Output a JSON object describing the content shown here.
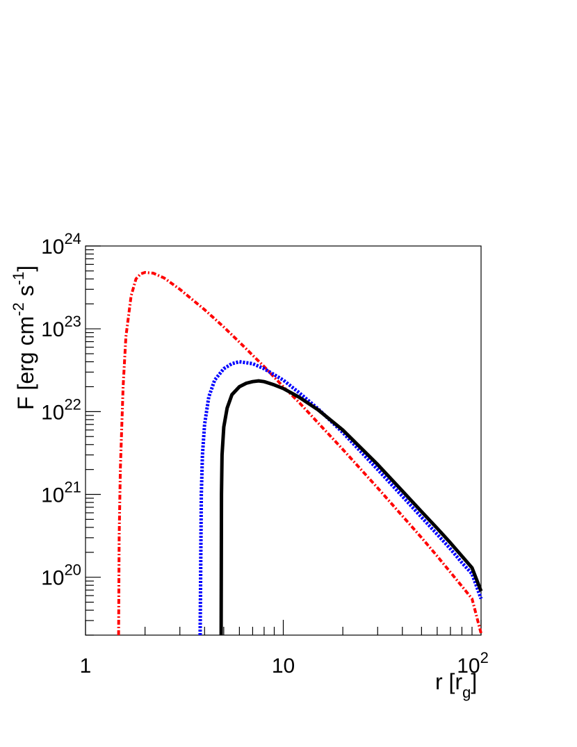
{
  "chart_data": {
    "type": "line",
    "xscale": "log",
    "yscale": "log",
    "xlim": [
      1,
      100
    ],
    "ylim": [
      2e+19,
      1e+24
    ],
    "grid": false,
    "xlabel": "r [r_g]",
    "ylabel": "F [erg cm^-2 s^-1]",
    "x_ticks": [
      {
        "value": 1,
        "label": "1"
      },
      {
        "value": 10,
        "label": "10"
      },
      {
        "value": 100,
        "label": "10",
        "sup": "2"
      }
    ],
    "y_ticks": [
      {
        "value": 1e+20,
        "label": "10",
        "sup": "20"
      },
      {
        "value": 1e+21,
        "label": "10",
        "sup": "21"
      },
      {
        "value": 1e+22,
        "label": "10",
        "sup": "22"
      },
      {
        "value": 1e+23,
        "label": "10",
        "sup": "23"
      },
      {
        "value": 1e+24,
        "label": "10",
        "sup": "24"
      }
    ],
    "series": [
      {
        "color": "#ff0000",
        "style": "dash-dot",
        "points": [
          [
            1.47,
            2e+19
          ],
          [
            1.48,
            3e+20
          ],
          [
            1.5,
            2e+21
          ],
          [
            1.55,
            2e+22
          ],
          [
            1.6,
            8e+22
          ],
          [
            1.7,
            2.5e+23
          ],
          [
            1.8,
            4e+23
          ],
          [
            1.9,
            4.6e+23
          ],
          [
            2.0,
            4.8e+23
          ],
          [
            2.2,
            4.7e+23
          ],
          [
            2.5,
            4.1e+23
          ],
          [
            3,
            3e+23
          ],
          [
            4,
            1.7e+23
          ],
          [
            5,
            1.05e+23
          ],
          [
            6,
            6.9e+22
          ],
          [
            7,
            4.8e+22
          ],
          [
            8,
            3.5e+22
          ],
          [
            10,
            2e+22
          ],
          [
            12,
            1.3e+22
          ],
          [
            15,
            7.3e+21
          ],
          [
            20,
            3.5e+21
          ],
          [
            30,
            1.2e+21
          ],
          [
            40,
            5.5e+20
          ],
          [
            50,
            3e+20
          ],
          [
            60,
            1.8e+20
          ],
          [
            70,
            1.15e+20
          ],
          [
            80,
            7.8e+19
          ],
          [
            90,
            5.5e+19
          ],
          [
            100,
            2.1e+19
          ]
        ]
      },
      {
        "color": "#0000ff",
        "style": "dotted",
        "points": [
          [
            3.8,
            2e+19
          ],
          [
            3.85,
            1e+21
          ],
          [
            3.9,
            3e+21
          ],
          [
            4.0,
            7e+21
          ],
          [
            4.2,
            1.5e+22
          ],
          [
            4.5,
            2.4e+22
          ],
          [
            5.0,
            3.3e+22
          ],
          [
            5.5,
            3.8e+22
          ],
          [
            6.0,
            4e+22
          ],
          [
            7.0,
            3.8e+22
          ],
          [
            8.0,
            3.3e+22
          ],
          [
            10,
            2.4e+22
          ],
          [
            12,
            1.7e+22
          ],
          [
            15,
            1.08e+22
          ],
          [
            20,
            5.6e+21
          ],
          [
            30,
            2e+21
          ],
          [
            40,
            9.5e+20
          ],
          [
            50,
            5.3e+20
          ],
          [
            60,
            3.3e+20
          ],
          [
            70,
            2.2e+20
          ],
          [
            80,
            1.5e+20
          ],
          [
            90,
            1.1e+20
          ],
          [
            100,
            5.5e+19
          ]
        ]
      },
      {
        "color": "#000000",
        "style": "solid",
        "points": [
          [
            4.85,
            2e+19
          ],
          [
            4.87,
            1e+21
          ],
          [
            4.9,
            3e+21
          ],
          [
            5.0,
            6.5e+21
          ],
          [
            5.2,
            1.1e+22
          ],
          [
            5.5,
            1.6e+22
          ],
          [
            6.0,
            2e+22
          ],
          [
            6.5,
            2.2e+22
          ],
          [
            7.0,
            2.3e+22
          ],
          [
            7.5,
            2.35e+22
          ],
          [
            8.0,
            2.3e+22
          ],
          [
            9.0,
            2.1e+22
          ],
          [
            10,
            1.9e+22
          ],
          [
            12,
            1.5e+22
          ],
          [
            15,
            1.05e+22
          ],
          [
            20,
            6e+21
          ],
          [
            30,
            2.3e+21
          ],
          [
            40,
            1.1e+21
          ],
          [
            50,
            6.2e+20
          ],
          [
            60,
            3.9e+20
          ],
          [
            70,
            2.6e+20
          ],
          [
            80,
            1.8e+20
          ],
          [
            90,
            1.3e+20
          ],
          [
            100,
            6.8e+19
          ]
        ]
      }
    ]
  }
}
